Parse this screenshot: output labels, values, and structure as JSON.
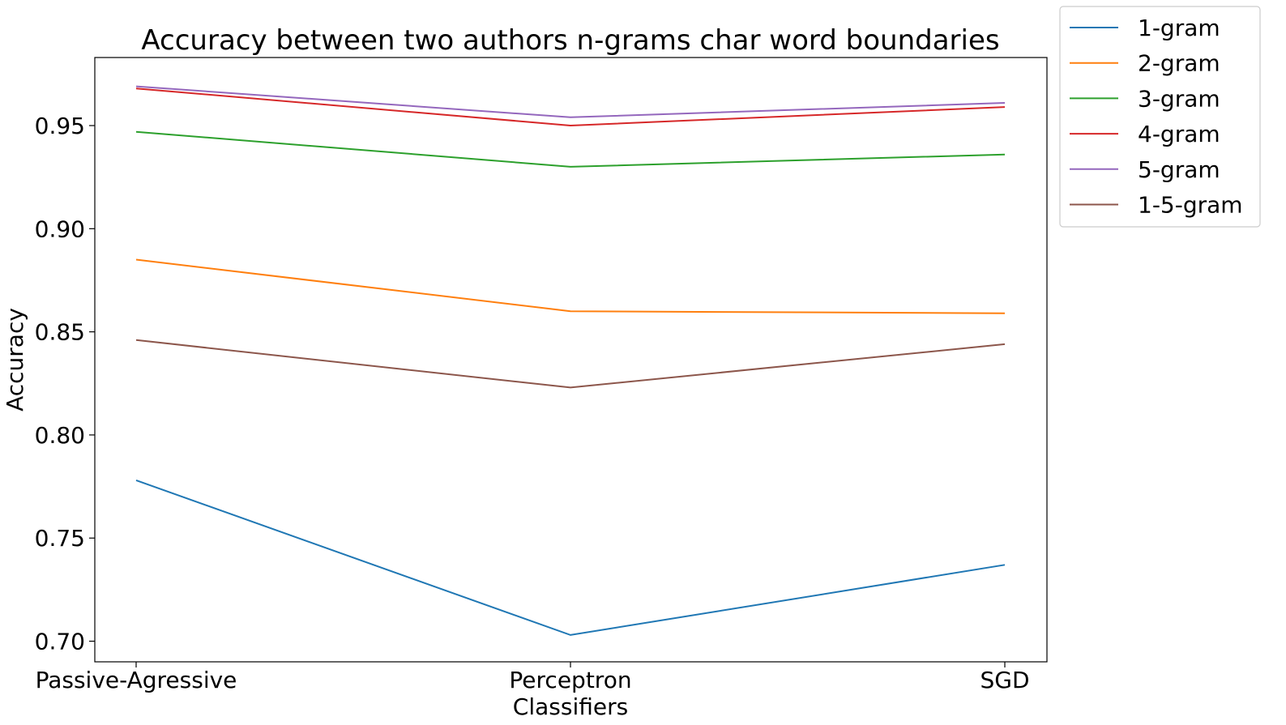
{
  "chart_data": {
    "type": "line",
    "title": "Accuracy between two authors n-grams char word boundaries",
    "xlabel": "Classifiers",
    "ylabel": "Accuracy",
    "categories": [
      "Passive-Agressive",
      "Perceptron",
      "SGD"
    ],
    "ylim": [
      0.69,
      0.983
    ],
    "yticks": [
      "0.70",
      "0.75",
      "0.80",
      "0.85",
      "0.90",
      "0.95"
    ],
    "grid": false,
    "legend_position": "outside-top-right",
    "series": [
      {
        "name": "1-gram",
        "color": "#1f77b4",
        "values": [
          0.778,
          0.703,
          0.737
        ]
      },
      {
        "name": "2-gram",
        "color": "#ff7f0e",
        "values": [
          0.885,
          0.86,
          0.859
        ]
      },
      {
        "name": "3-gram",
        "color": "#2ca02c",
        "values": [
          0.947,
          0.93,
          0.936
        ]
      },
      {
        "name": "4-gram",
        "color": "#d62728",
        "values": [
          0.968,
          0.95,
          0.959
        ]
      },
      {
        "name": "5-gram",
        "color": "#9467bd",
        "values": [
          0.969,
          0.954,
          0.961
        ]
      },
      {
        "name": "1-5-gram",
        "color": "#8c564b",
        "values": [
          0.846,
          0.823,
          0.844
        ]
      }
    ]
  }
}
